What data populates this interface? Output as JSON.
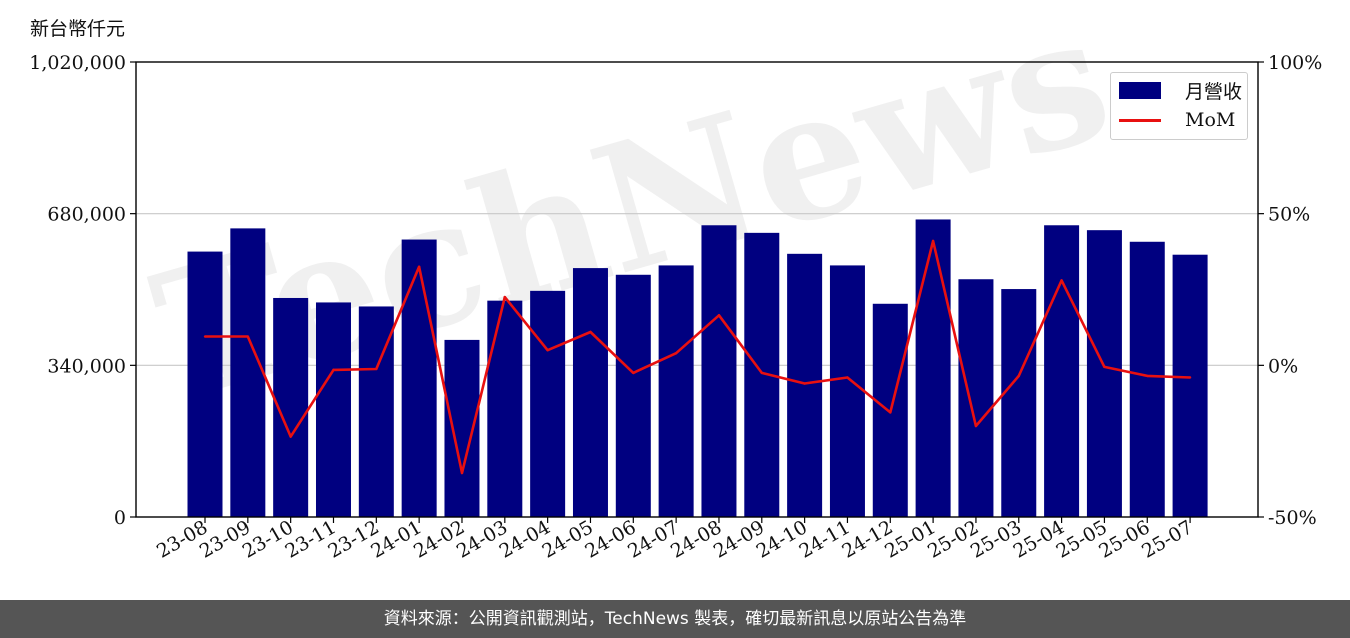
{
  "unit_label": "新台幣仟元",
  "footer": "資料來源：公開資訊觀測站，TechNews 製表，確切最新訊息以原站公告為準",
  "watermark": "TechNews",
  "colors": {
    "bar": "#000080",
    "line": "#e81010",
    "footer_bg": "#555555",
    "grid": "#c8c8c8"
  },
  "chart_data": {
    "type": "bar",
    "categories": [
      "23-08",
      "23-09",
      "23-10",
      "23-11",
      "23-12",
      "24-01",
      "24-02",
      "24-03",
      "24-04",
      "24-05",
      "24-06",
      "24-07",
      "24-08",
      "24-09",
      "24-10",
      "24-11",
      "24-12",
      "25-01",
      "25-02",
      "25-03",
      "25-04",
      "25-05",
      "25-06",
      "25-07"
    ],
    "series": [
      {
        "name": "月營收",
        "type": "bar",
        "axis": "left",
        "values": [
          595000,
          647000,
          491000,
          481000,
          472000,
          622000,
          397000,
          485000,
          507000,
          558000,
          543000,
          564000,
          654000,
          637000,
          590000,
          564000,
          478000,
          667000,
          533000,
          511000,
          654000,
          643000,
          617000,
          588000
        ]
      },
      {
        "name": "MoM",
        "type": "line",
        "axis": "right",
        "values": [
          9.5,
          9.5,
          -23.5,
          -1.5,
          -1.2,
          32.5,
          -35.5,
          22.5,
          5,
          11,
          -2.5,
          4,
          16.5,
          -2.5,
          -6,
          -4,
          -15.5,
          41,
          -20,
          -3.5,
          28,
          -0.5,
          -3.5,
          -4
        ]
      }
    ],
    "left_axis": {
      "ylim": [
        0,
        1020000
      ],
      "ticks": [
        0,
        340000,
        680000,
        1020000
      ],
      "tick_labels": [
        "0",
        "340,000",
        "680,000",
        "1,020,000"
      ]
    },
    "right_axis": {
      "ylim": [
        -50,
        100
      ],
      "ticks": [
        -50,
        0,
        50,
        100
      ],
      "tick_labels": [
        "-50%",
        "0%",
        "50%",
        "100%"
      ]
    },
    "grid": "horizontal",
    "legend_position": "top-right"
  }
}
